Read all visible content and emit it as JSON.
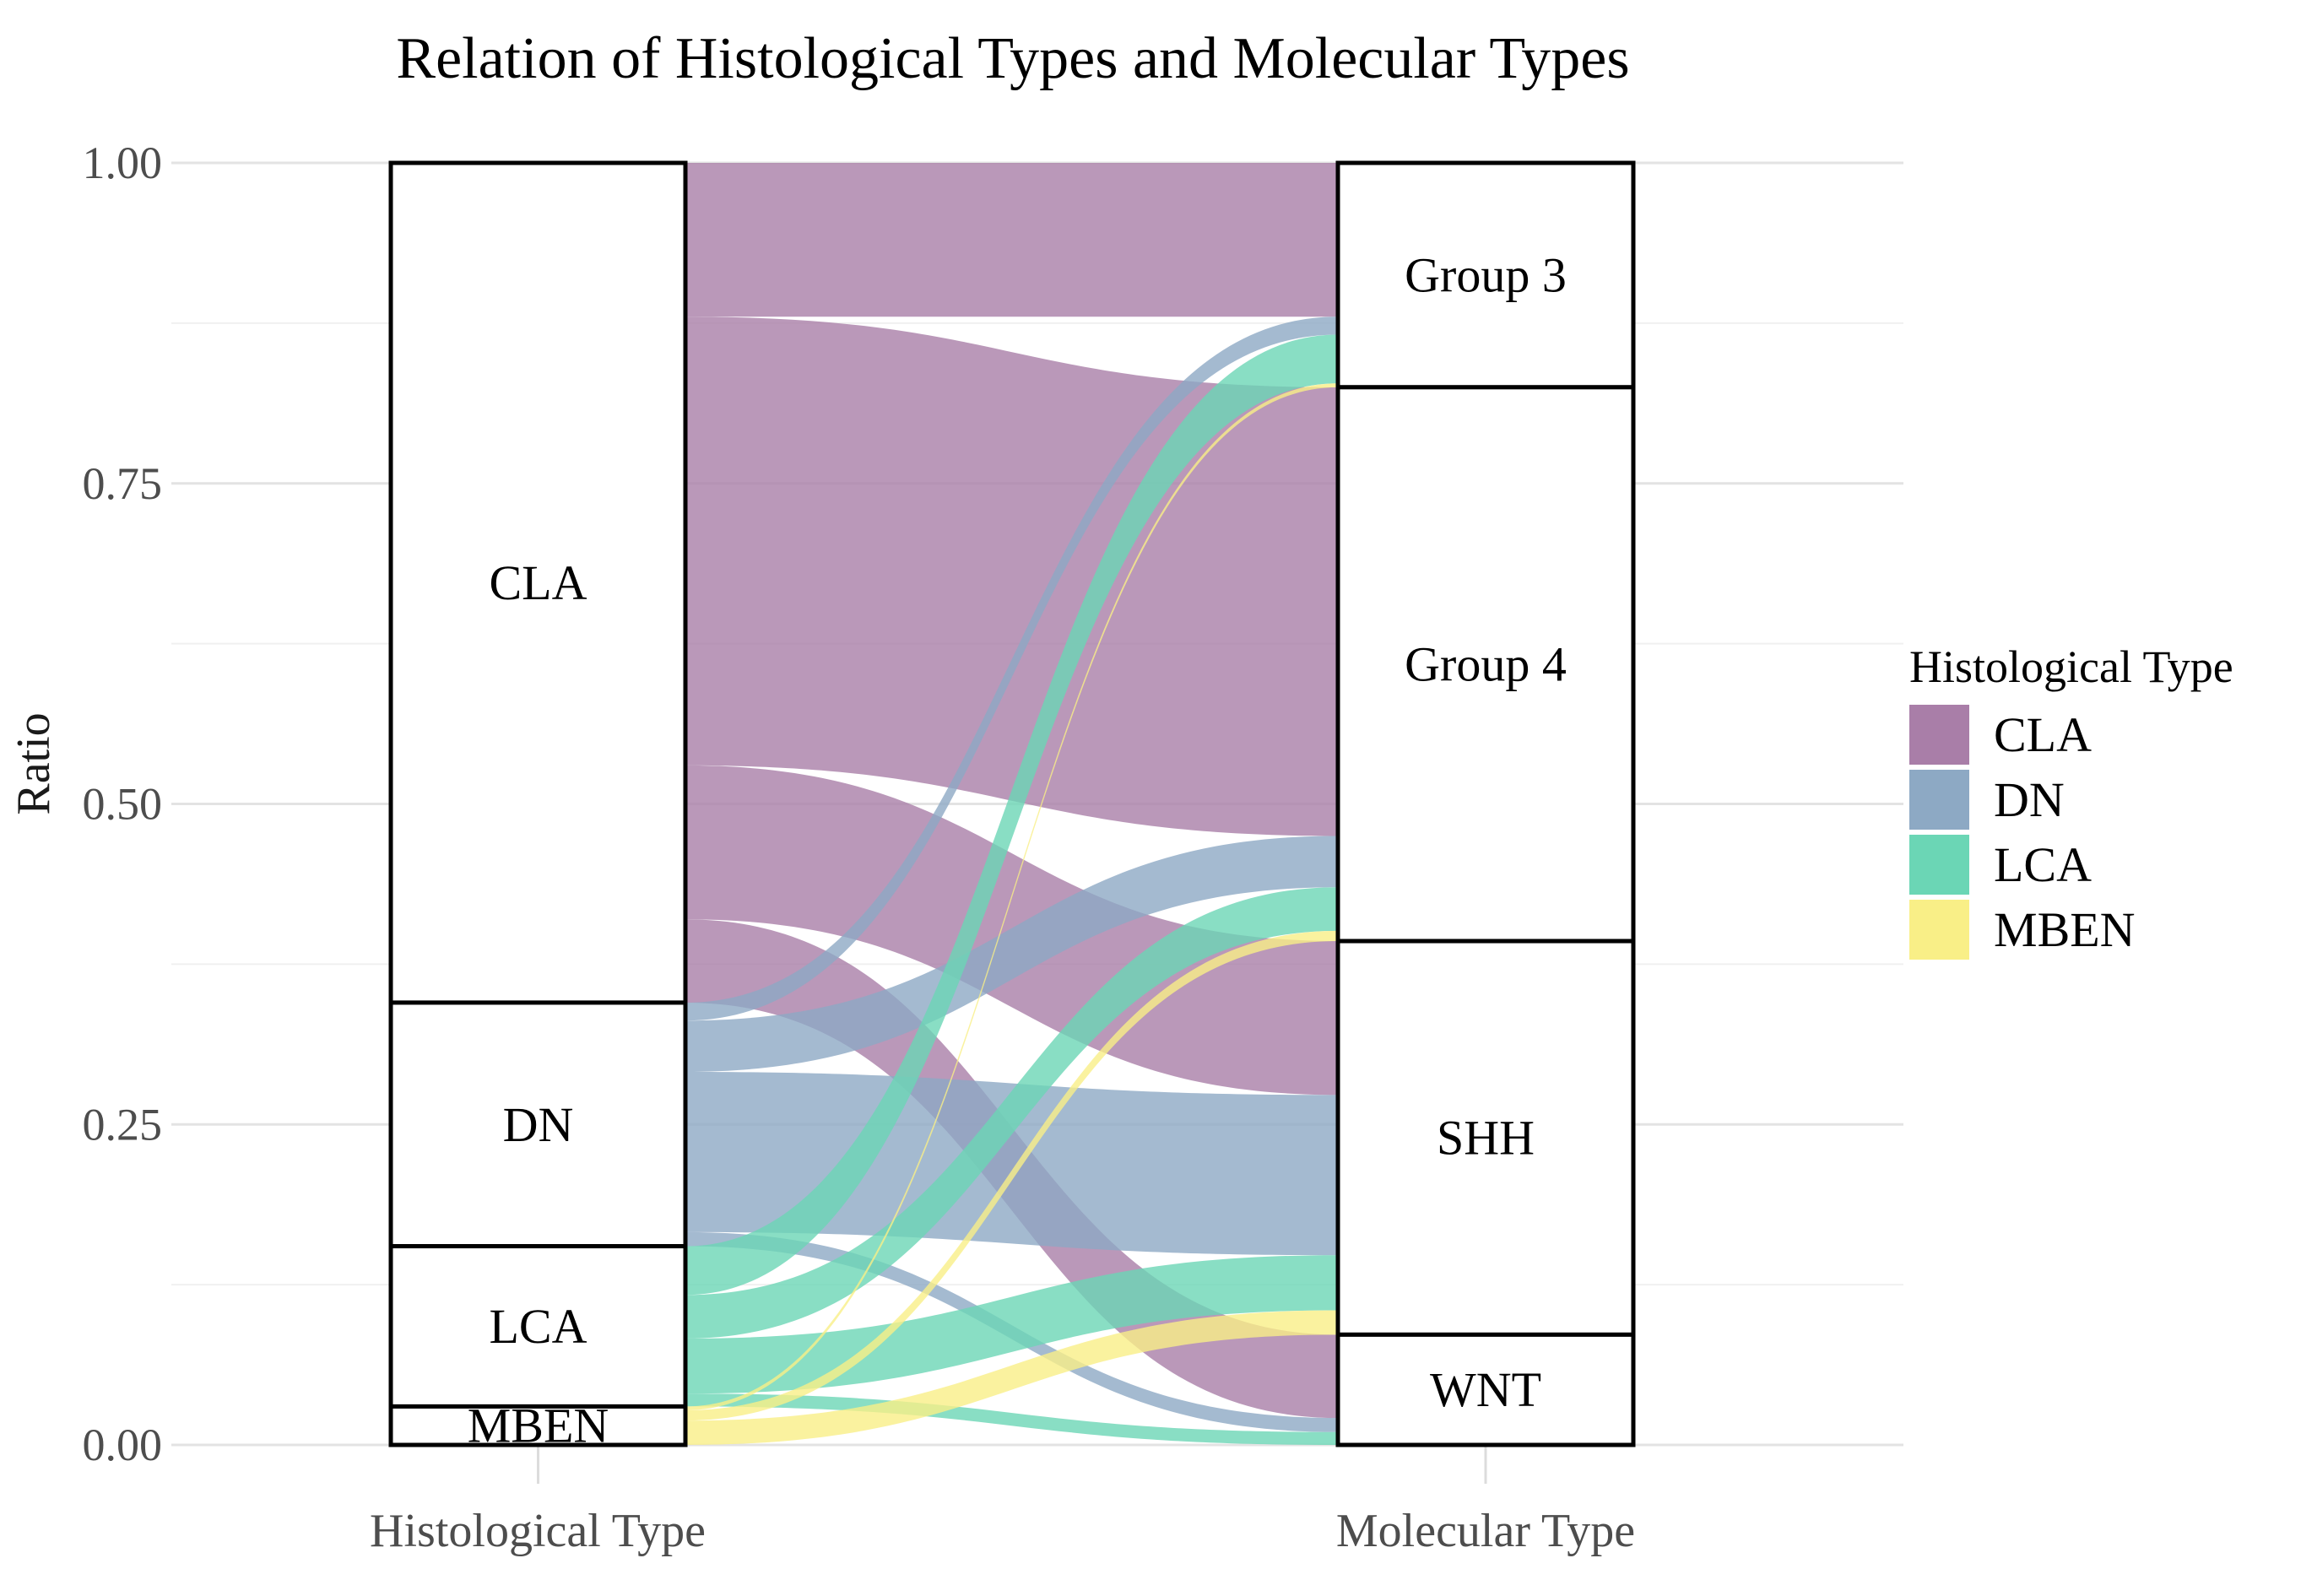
{
  "title": "Relation of Histological Types and Molecular Types",
  "axes": {
    "y": {
      "label": "Ratio",
      "major_ticks": [
        {
          "value": 1.0,
          "label": "1.00"
        },
        {
          "value": 0.75,
          "label": "0.75"
        },
        {
          "value": 0.5,
          "label": "0.50"
        },
        {
          "value": 0.25,
          "label": "0.25"
        },
        {
          "value": 0.0,
          "label": "0.00"
        }
      ],
      "minor_tick_values": [
        0.875,
        0.625,
        0.375,
        0.125
      ]
    },
    "x": {
      "left_label": "Histological Type",
      "right_label": "Molecular Type"
    }
  },
  "legend": {
    "title": "Histological Type",
    "items": [
      {
        "label": "CLA",
        "color": "#a97ea8"
      },
      {
        "label": "DN",
        "color": "#8da9c4"
      },
      {
        "label": "LCA",
        "color": "#6bd6b5"
      },
      {
        "label": "MBEN",
        "color": "#f9ef87"
      }
    ]
  },
  "chart_data": {
    "type": "alluvial",
    "title": "Relation of Histological Types and Molecular Types",
    "ylabel": "Ratio",
    "ylim": [
      0,
      1
    ],
    "left_axis_title": "Histological Type",
    "right_axis_title": "Molecular Type",
    "left_strata": [
      {
        "name": "CLA",
        "ratio": 0.655
      },
      {
        "name": "DN",
        "ratio": 0.19
      },
      {
        "name": "LCA",
        "ratio": 0.125
      },
      {
        "name": "MBEN",
        "ratio": 0.03
      }
    ],
    "right_strata": [
      {
        "name": "Group 3",
        "ratio": 0.175
      },
      {
        "name": "Group 4",
        "ratio": 0.432
      },
      {
        "name": "SHH",
        "ratio": 0.307
      },
      {
        "name": "WNT",
        "ratio": 0.086
      }
    ],
    "flows": [
      {
        "from": "CLA",
        "to": "Group 3",
        "value": 0.12
      },
      {
        "from": "CLA",
        "to": "Group 4",
        "value": 0.35
      },
      {
        "from": "CLA",
        "to": "SHH",
        "value": 0.12
      },
      {
        "from": "CLA",
        "to": "WNT",
        "value": 0.065
      },
      {
        "from": "DN",
        "to": "Group 3",
        "value": 0.014
      },
      {
        "from": "DN",
        "to": "Group 4",
        "value": 0.04
      },
      {
        "from": "DN",
        "to": "SHH",
        "value": 0.125
      },
      {
        "from": "DN",
        "to": "WNT",
        "value": 0.011
      },
      {
        "from": "LCA",
        "to": "Group 3",
        "value": 0.038
      },
      {
        "from": "LCA",
        "to": "Group 4",
        "value": 0.034
      },
      {
        "from": "LCA",
        "to": "SHH",
        "value": 0.043
      },
      {
        "from": "LCA",
        "to": "WNT",
        "value": 0.01
      },
      {
        "from": "MBEN",
        "to": "Group 3",
        "value": 0.003
      },
      {
        "from": "MBEN",
        "to": "Group 4",
        "value": 0.008
      },
      {
        "from": "MBEN",
        "to": "SHH",
        "value": 0.019
      }
    ],
    "colors": {
      "CLA": "#a97ea8",
      "DN": "#8da9c4",
      "LCA": "#6bd6b5",
      "MBEN": "#f9ef87"
    },
    "flow_opacity": 0.8,
    "stratum_fill": "#ffffff",
    "stratum_border": "#000000",
    "grid_major_color": "#e3e3e3",
    "grid_minor_color": "#f0f0f0",
    "tick_label_color": "#4d4d4d",
    "axis_title_color": "#4d4d4d",
    "legend_position": "right"
  }
}
